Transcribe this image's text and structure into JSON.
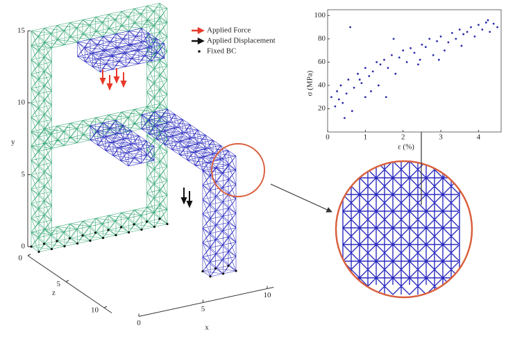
{
  "legend": [
    {
      "label": "Applied Force",
      "color": "#e8392a"
    },
    {
      "label": "Applied Displacement",
      "color": "#111111"
    },
    {
      "label": "Fixed BC",
      "color": "#111111"
    }
  ],
  "lattice_axes": {
    "x": {
      "label": "x",
      "ticks": [
        0,
        5,
        10
      ]
    },
    "y": {
      "label": "y",
      "ticks": [
        0,
        5,
        10,
        15
      ]
    },
    "z": {
      "label": "z",
      "ticks": [
        0,
        5,
        10
      ]
    }
  },
  "chart_data": {
    "type": "scatter",
    "xlabel": "ε (%)",
    "ylabel": "σ (MPa)",
    "xlim": [
      0,
      4.6
    ],
    "ylim": [
      0,
      105
    ],
    "xticks": [
      0,
      1,
      2,
      3,
      4
    ],
    "yticks": [
      20,
      40,
      60,
      80,
      100
    ],
    "color": "#2a2aa8",
    "x": [
      0.1,
      0.2,
      0.25,
      0.3,
      0.35,
      0.4,
      0.5,
      0.55,
      0.6,
      0.7,
      0.8,
      0.9,
      1.0,
      1.0,
      1.1,
      1.2,
      1.3,
      1.35,
      1.4,
      1.5,
      1.6,
      1.7,
      1.8,
      1.9,
      2.0,
      2.1,
      2.2,
      2.3,
      2.4,
      2.5,
      2.6,
      2.7,
      2.8,
      2.9,
      3.0,
      3.1,
      3.2,
      3.3,
      3.4,
      3.5,
      3.6,
      3.7,
      3.8,
      3.9,
      4.0,
      4.1,
      4.2,
      4.3,
      4.4,
      4.5,
      0.65,
      1.15,
      1.75,
      2.45,
      0.45,
      2.95,
      3.55,
      4.25,
      0.85,
      1.55
    ],
    "values": [
      30,
      22,
      35,
      28,
      40,
      25,
      33,
      45,
      90,
      38,
      50,
      42,
      55,
      30,
      48,
      52,
      60,
      40,
      58,
      62,
      55,
      66,
      50,
      64,
      70,
      60,
      72,
      68,
      58,
      75,
      73,
      80,
      66,
      78,
      82,
      70,
      77,
      85,
      80,
      88,
      84,
      86,
      90,
      82,
      92,
      88,
      94,
      86,
      93,
      90,
      18,
      35,
      80,
      62,
      12,
      62,
      74,
      96,
      45,
      30
    ]
  }
}
